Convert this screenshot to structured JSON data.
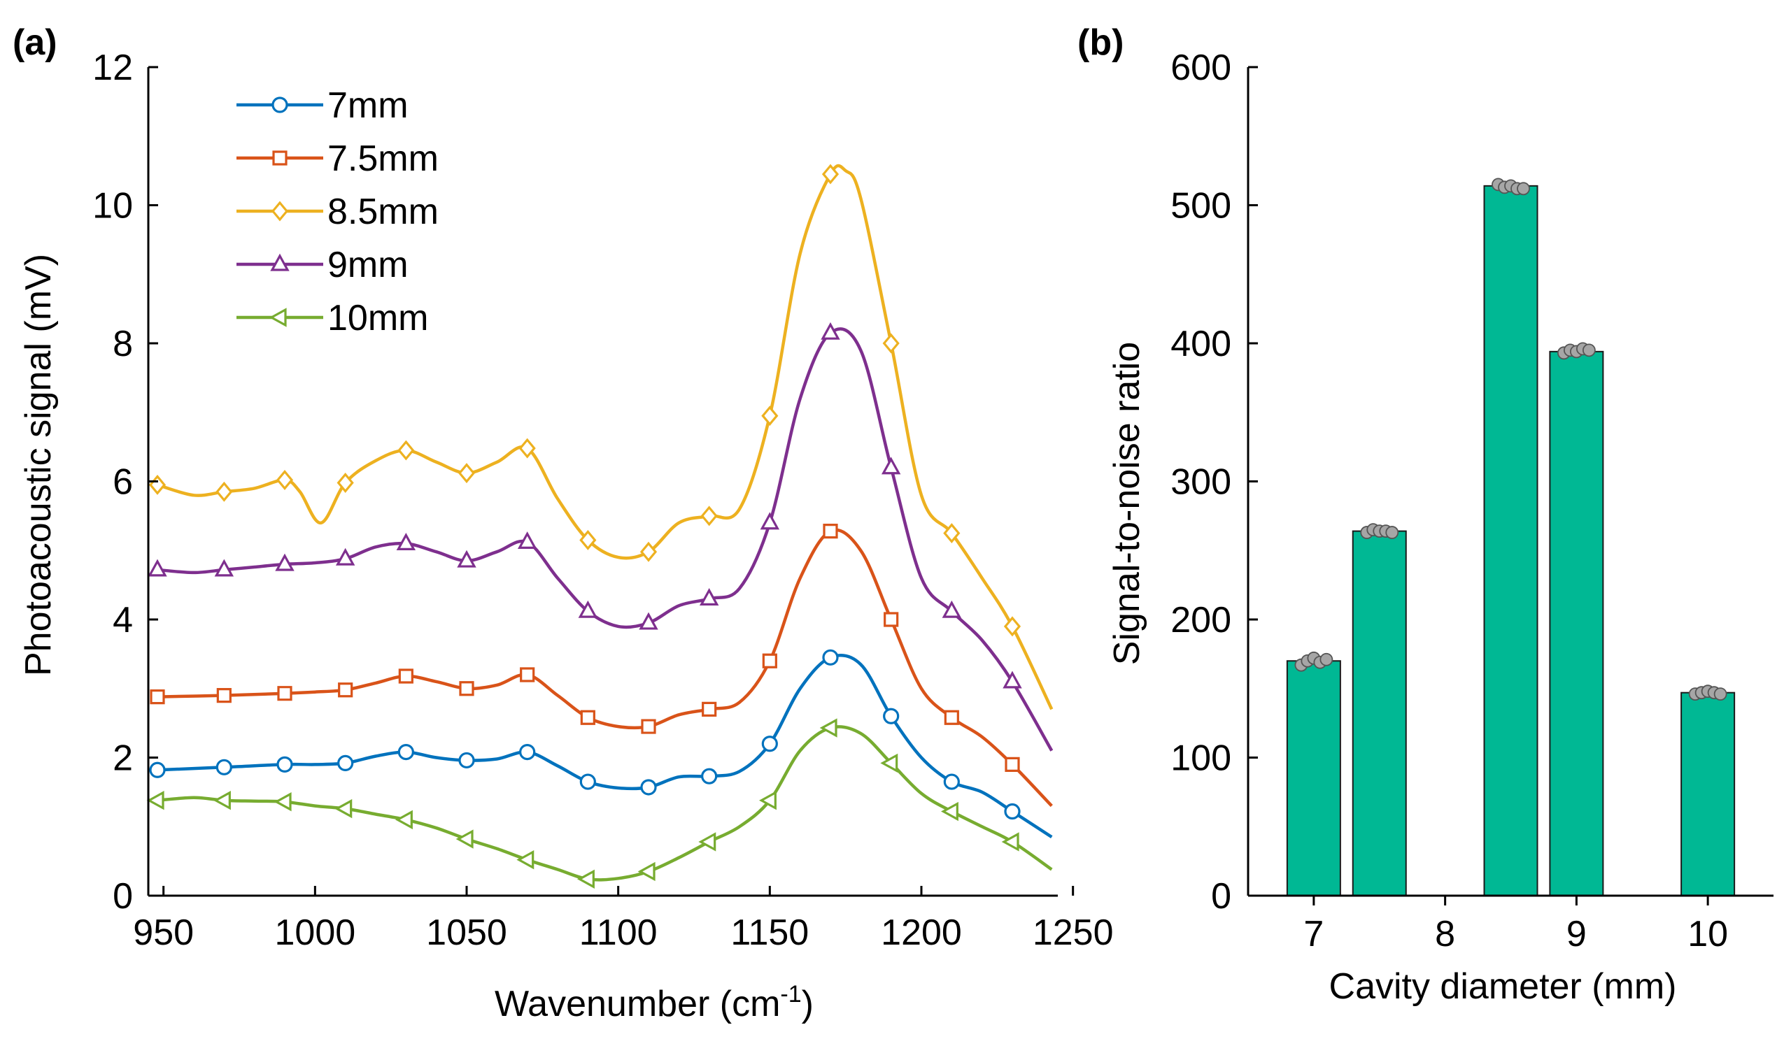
{
  "chart_data": [
    {
      "panel_label": "(a)",
      "type": "line",
      "title": "",
      "xlabel_main": "Wavenumber (cm",
      "xlabel_sup": "-1",
      "xlabel_end": ")",
      "ylabel": "Photoacoustic signal (mV)",
      "xlim": [
        945,
        1245
      ],
      "ylim": [
        0,
        12
      ],
      "xticks": [
        950,
        1000,
        1050,
        1100,
        1150,
        1200,
        1250
      ],
      "yticks": [
        0,
        2,
        4,
        6,
        8,
        10,
        12
      ],
      "grid": false,
      "legend_position": "top-left",
      "series": [
        {
          "name": "7mm",
          "color": "#0072BD",
          "marker": "circle",
          "x": [
            948,
            970,
            990,
            1000,
            1010,
            1020,
            1030,
            1040,
            1050,
            1060,
            1070,
            1080,
            1090,
            1100,
            1110,
            1120,
            1130,
            1140,
            1150,
            1160,
            1170,
            1180,
            1190,
            1200,
            1210,
            1220,
            1230,
            1243
          ],
          "y": [
            1.82,
            1.86,
            1.9,
            1.9,
            1.92,
            2.02,
            2.08,
            2.0,
            1.96,
            1.98,
            2.08,
            1.88,
            1.65,
            1.56,
            1.57,
            1.72,
            1.73,
            1.8,
            2.2,
            3.0,
            3.45,
            3.35,
            2.6,
            2.0,
            1.65,
            1.5,
            1.22,
            0.85
          ],
          "marker_x": [
            948,
            970,
            990,
            1010,
            1030,
            1050,
            1070,
            1090,
            1110,
            1130,
            1150,
            1170,
            1190,
            1210,
            1230
          ]
        },
        {
          "name": "7.5mm",
          "color": "#D95319",
          "marker": "square",
          "x": [
            948,
            970,
            990,
            1000,
            1010,
            1020,
            1030,
            1040,
            1050,
            1060,
            1070,
            1080,
            1090,
            1100,
            1110,
            1120,
            1130,
            1140,
            1150,
            1160,
            1170,
            1180,
            1190,
            1200,
            1210,
            1220,
            1230,
            1243
          ],
          "y": [
            2.88,
            2.9,
            2.93,
            2.95,
            2.98,
            3.08,
            3.18,
            3.1,
            3.0,
            3.05,
            3.2,
            2.9,
            2.58,
            2.45,
            2.45,
            2.62,
            2.7,
            2.8,
            3.4,
            4.6,
            5.28,
            5.0,
            4.0,
            3.0,
            2.58,
            2.3,
            1.9,
            1.3
          ],
          "marker_x": [
            948,
            970,
            990,
            1010,
            1030,
            1050,
            1070,
            1090,
            1110,
            1130,
            1150,
            1170,
            1190,
            1210,
            1230
          ]
        },
        {
          "name": "8.5mm",
          "color": "#EDB120",
          "marker": "diamond",
          "x": [
            948,
            960,
            970,
            980,
            990,
            995,
            1002,
            1010,
            1020,
            1030,
            1040,
            1050,
            1060,
            1070,
            1080,
            1090,
            1100,
            1110,
            1120,
            1130,
            1140,
            1150,
            1160,
            1170,
            1175,
            1180,
            1190,
            1200,
            1210,
            1220,
            1230,
            1243
          ],
          "y": [
            5.95,
            5.8,
            5.85,
            5.9,
            6.02,
            5.85,
            5.4,
            5.98,
            6.3,
            6.45,
            6.28,
            6.12,
            6.28,
            6.48,
            5.75,
            5.15,
            4.9,
            4.98,
            5.4,
            5.5,
            5.6,
            6.95,
            9.3,
            10.45,
            10.5,
            10.1,
            8.0,
            5.8,
            5.25,
            4.6,
            3.9,
            2.7
          ],
          "marker_x": [
            948,
            970,
            990,
            1010,
            1030,
            1050,
            1070,
            1090,
            1110,
            1130,
            1150,
            1170,
            1190,
            1210,
            1230
          ]
        },
        {
          "name": "9mm",
          "color": "#7E2F8E",
          "marker": "triangle-up",
          "x": [
            948,
            960,
            970,
            980,
            990,
            1000,
            1010,
            1020,
            1030,
            1040,
            1050,
            1060,
            1070,
            1080,
            1090,
            1100,
            1110,
            1120,
            1130,
            1140,
            1150,
            1160,
            1170,
            1180,
            1190,
            1200,
            1210,
            1220,
            1230,
            1243
          ],
          "y": [
            4.72,
            4.68,
            4.72,
            4.76,
            4.8,
            4.82,
            4.88,
            5.05,
            5.1,
            4.98,
            4.85,
            4.98,
            5.12,
            4.6,
            4.12,
            3.9,
            3.95,
            4.2,
            4.3,
            4.45,
            5.4,
            7.2,
            8.15,
            7.9,
            6.2,
            4.6,
            4.12,
            3.7,
            3.1,
            2.1
          ],
          "marker_x": [
            948,
            970,
            990,
            1010,
            1030,
            1050,
            1070,
            1090,
            1110,
            1130,
            1150,
            1170,
            1190,
            1210,
            1230
          ]
        },
        {
          "name": "10mm",
          "color": "#77AC30",
          "marker": "triangle-left",
          "x": [
            948,
            960,
            970,
            980,
            990,
            1000,
            1010,
            1020,
            1030,
            1040,
            1050,
            1060,
            1070,
            1080,
            1090,
            1100,
            1110,
            1120,
            1130,
            1140,
            1150,
            1160,
            1170,
            1180,
            1190,
            1200,
            1210,
            1220,
            1230,
            1243
          ],
          "y": [
            1.38,
            1.42,
            1.38,
            1.37,
            1.36,
            1.3,
            1.26,
            1.18,
            1.1,
            0.98,
            0.82,
            0.68,
            0.52,
            0.38,
            0.24,
            0.25,
            0.35,
            0.55,
            0.78,
            1.0,
            1.38,
            2.1,
            2.43,
            2.35,
            1.92,
            1.48,
            1.22,
            1.0,
            0.78,
            0.38
          ],
          "marker_x": [
            948,
            970,
            990,
            1010,
            1030,
            1050,
            1070,
            1090,
            1110,
            1130,
            1150,
            1170,
            1190,
            1210,
            1230
          ]
        }
      ]
    },
    {
      "panel_label": "(b)",
      "type": "bar",
      "title": "",
      "xlabel": "Cavity diameter (mm)",
      "ylabel": "Signal-to-noise ratio",
      "xlim": [
        6.5,
        10.5
      ],
      "ylim": [
        0,
        600
      ],
      "xticks": [
        7,
        8,
        9,
        10
      ],
      "yticks": [
        0,
        100,
        200,
        300,
        400,
        500,
        600
      ],
      "grid": false,
      "bar_color": "#00B894",
      "point_color": "#A6A6A6",
      "bars": [
        {
          "x": 7.0,
          "value": 170,
          "points": [
            167,
            170,
            172,
            169,
            171
          ]
        },
        {
          "x": 7.5,
          "value": 264,
          "points": [
            263,
            265,
            264,
            264,
            263
          ]
        },
        {
          "x": 8.5,
          "value": 514,
          "points": [
            515,
            513,
            514,
            512,
            512
          ]
        },
        {
          "x": 9.0,
          "value": 394,
          "points": [
            393,
            395,
            394,
            396,
            395
          ]
        },
        {
          "x": 10.0,
          "value": 147,
          "points": [
            146,
            147,
            148,
            147,
            146
          ]
        }
      ]
    }
  ]
}
